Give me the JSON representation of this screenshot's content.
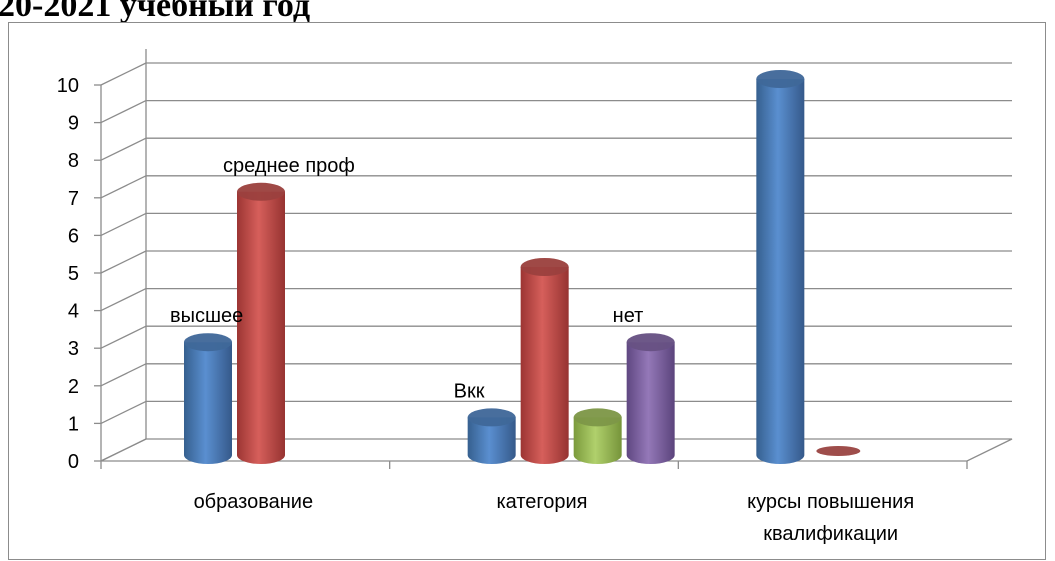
{
  "heading": "20-2021 учебный год",
  "chart_data": {
    "type": "bar",
    "title": "",
    "xlabel": "",
    "ylabel": "",
    "ylim": [
      0,
      10
    ],
    "yticks": [
      0,
      1,
      2,
      3,
      4,
      5,
      6,
      7,
      8,
      9,
      10
    ],
    "grid": true,
    "legend": "none",
    "groups": [
      {
        "category": [
          "образование"
        ],
        "bars": [
          {
            "value": 3,
            "color": "#4f81bd",
            "label": "высшее"
          },
          {
            "value": 7,
            "color": "#c0504d",
            "label": "среднее проф"
          }
        ]
      },
      {
        "category": [
          "категория"
        ],
        "bars": [
          {
            "value": 1,
            "color": "#4f81bd",
            "label": "Вкк"
          },
          {
            "value": 5,
            "color": "#c0504d",
            "label": ""
          },
          {
            "value": 1,
            "color": "#9bbb59",
            "label": ""
          },
          {
            "value": 3,
            "color": "#8064a2",
            "label": "нет"
          }
        ]
      },
      {
        "category": [
          "курсы повышения",
          "квалификации"
        ],
        "bars": [
          {
            "value": 10,
            "color": "#4f81bd",
            "label": ""
          },
          {
            "value": 0,
            "color": "#c0504d",
            "label": ""
          }
        ]
      }
    ]
  }
}
